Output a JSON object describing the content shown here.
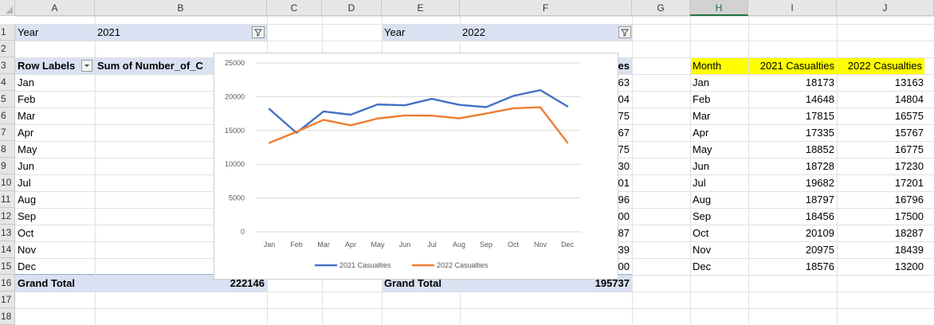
{
  "columns": [
    "A",
    "B",
    "C",
    "D",
    "E",
    "F",
    "G",
    "H",
    "I",
    "J"
  ],
  "rows": [
    "1",
    "2",
    "3",
    "4",
    "5",
    "6",
    "7",
    "8",
    "9",
    "10",
    "11",
    "12",
    "13",
    "14",
    "15",
    "16",
    "17",
    "18"
  ],
  "pivot1": {
    "filter_label": "Year",
    "filter_value": "2021",
    "row_labels": "Row Labels",
    "sum_header": "Sum of Number_of_C",
    "months": [
      "Jan",
      "Feb",
      "Mar",
      "Apr",
      "May",
      "Jun",
      "Jul",
      "Aug",
      "Sep",
      "Oct",
      "Nov",
      "Dec"
    ],
    "grand_total_label": "Grand Total",
    "grand_total_value": "222146"
  },
  "pivot2": {
    "filter_label": "Year",
    "filter_value": "2022",
    "header_tail": "alties",
    "values": [
      "13163",
      "14804",
      "16575",
      "15767",
      "16775",
      "17230",
      "17201",
      "16796",
      "17500",
      "18287",
      "18439",
      "13200"
    ],
    "grand_total_label": "Grand Total",
    "grand_total_value": "195737"
  },
  "table": {
    "headers": [
      "Month",
      "2021 Casualties",
      "2022 Casualties"
    ],
    "rows": [
      [
        "Jan",
        "18173",
        "13163"
      ],
      [
        "Feb",
        "14648",
        "14804"
      ],
      [
        "Mar",
        "17815",
        "16575"
      ],
      [
        "Apr",
        "17335",
        "15767"
      ],
      [
        "May",
        "18852",
        "16775"
      ],
      [
        "Jun",
        "18728",
        "17230"
      ],
      [
        "Jul",
        "19682",
        "17201"
      ],
      [
        "Aug",
        "18797",
        "16796"
      ],
      [
        "Sep",
        "18456",
        "17500"
      ],
      [
        "Oct",
        "20109",
        "18287"
      ],
      [
        "Nov",
        "20975",
        "18439"
      ],
      [
        "Dec",
        "18576",
        "13200"
      ]
    ]
  },
  "colors": {
    "series2021": "#4472c4",
    "series2022": "#ed7d31",
    "pivot_band": "#d9e1f2",
    "highlight": "#ffff00"
  },
  "chart_data": {
    "type": "line",
    "categories": [
      "Jan",
      "Feb",
      "Mar",
      "Apr",
      "May",
      "Jun",
      "Jul",
      "Aug",
      "Sep",
      "Oct",
      "Nov",
      "Dec"
    ],
    "series": [
      {
        "name": "2021 Casualties",
        "values": [
          18173,
          14648,
          17815,
          17335,
          18852,
          18728,
          19682,
          18797,
          18456,
          20109,
          20975,
          18576
        ],
        "color": "#4472c4"
      },
      {
        "name": "2022 Casualties",
        "values": [
          13163,
          14804,
          16575,
          15767,
          16775,
          17230,
          17201,
          16796,
          17500,
          18287,
          18439,
          13200
        ],
        "color": "#ed7d31"
      }
    ],
    "yticks": [
      "0",
      "5000",
      "10000",
      "15000",
      "20000",
      "25000"
    ],
    "ylim": [
      0,
      25000
    ],
    "grid": true,
    "legend": "bottom"
  }
}
